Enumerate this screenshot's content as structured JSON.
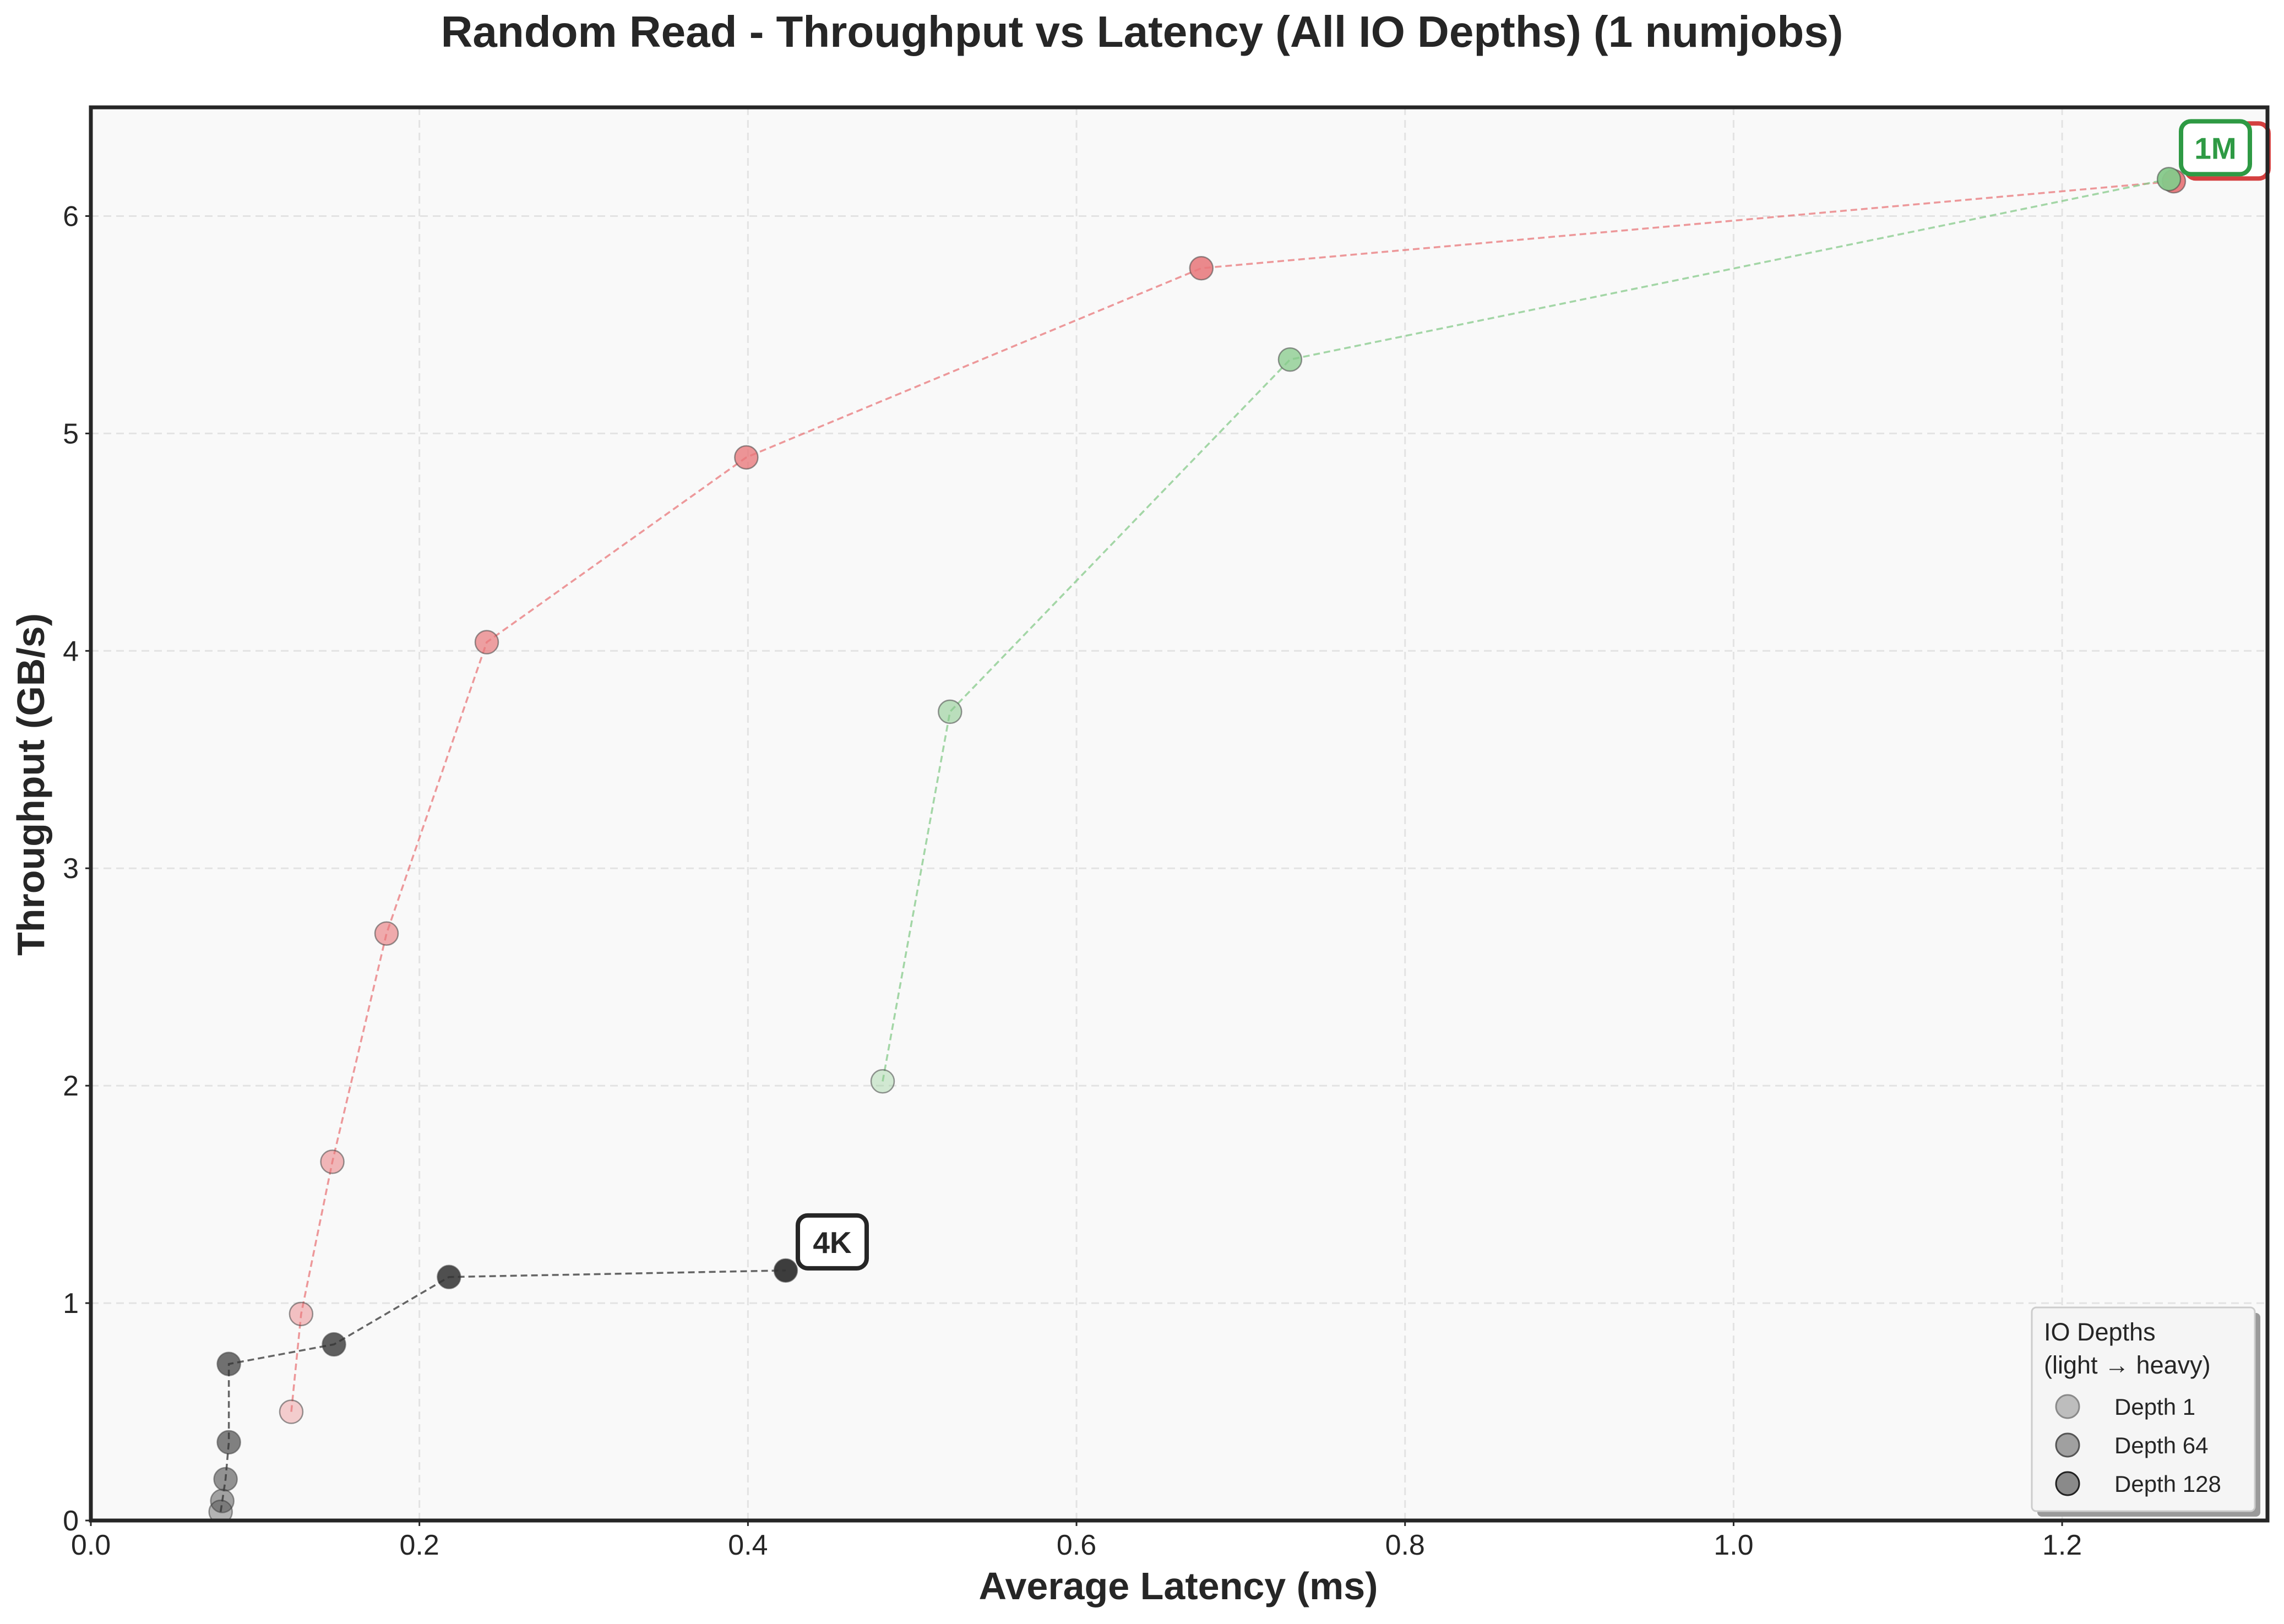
{
  "chart_data": {
    "type": "scatter",
    "title": "Random Read - Throughput vs Latency (All IO Depths) (1 numjobs)",
    "xlabel": "Average Latency (ms)",
    "ylabel": "Throughput (GB/s)",
    "xlim": [
      0.0,
      1.325
    ],
    "ylim": [
      0,
      6.5
    ],
    "x_ticks": [
      0.0,
      0.2,
      0.4,
      0.6,
      0.8,
      1.0,
      1.2
    ],
    "x_tick_labels": [
      "0.0",
      "0.2",
      "0.4",
      "0.6",
      "0.8",
      "1.0",
      "1.2"
    ],
    "y_ticks": [
      0,
      1,
      2,
      3,
      4,
      5,
      6
    ],
    "y_tick_labels": [
      "0",
      "1",
      "2",
      "3",
      "4",
      "5",
      "6"
    ],
    "grid": true,
    "series": [
      {
        "color": "#333333",
        "points": [
          {
            "x": 0.079,
            "y": 0.04
          },
          {
            "x": 0.08,
            "y": 0.09
          },
          {
            "x": 0.082,
            "y": 0.19
          },
          {
            "x": 0.084,
            "y": 0.36
          },
          {
            "x": 0.084,
            "y": 0.72
          },
          {
            "x": 0.148,
            "y": 0.81
          },
          {
            "x": 0.218,
            "y": 1.12
          },
          {
            "x": 0.423,
            "y": 1.15
          }
        ]
      },
      {
        "color": "#e8777a",
        "points": [
          {
            "x": 0.122,
            "y": 0.5
          },
          {
            "x": 0.128,
            "y": 0.95
          },
          {
            "x": 0.147,
            "y": 1.65
          },
          {
            "x": 0.18,
            "y": 2.7
          },
          {
            "x": 0.241,
            "y": 4.04
          },
          {
            "x": 0.399,
            "y": 4.89
          },
          {
            "x": 0.676,
            "y": 5.76
          },
          {
            "x": 1.268,
            "y": 6.16
          }
        ]
      },
      {
        "color": "#86c98a",
        "points": [
          {
            "x": 0.482,
            "y": 2.02
          },
          {
            "x": 0.523,
            "y": 3.72
          },
          {
            "x": 0.73,
            "y": 5.34
          },
          {
            "x": 1.265,
            "y": 6.17
          }
        ]
      }
    ],
    "annotations": [
      {
        "text": "4K",
        "color": "#262626",
        "x": 0.423,
        "y": 1.15
      },
      {
        "text": "1M",
        "color": "#2e9a44",
        "x": 1.265,
        "y": 6.17
      },
      {
        "text": "",
        "color": "#d44040",
        "x": 1.268,
        "y": 6.16
      }
    ],
    "legend": {
      "title_line1": "IO Depths",
      "title_line2": "(light → heavy)",
      "position": "lower-right",
      "entries": [
        "Depth 1",
        "Depth 64",
        "Depth 128"
      ]
    }
  }
}
